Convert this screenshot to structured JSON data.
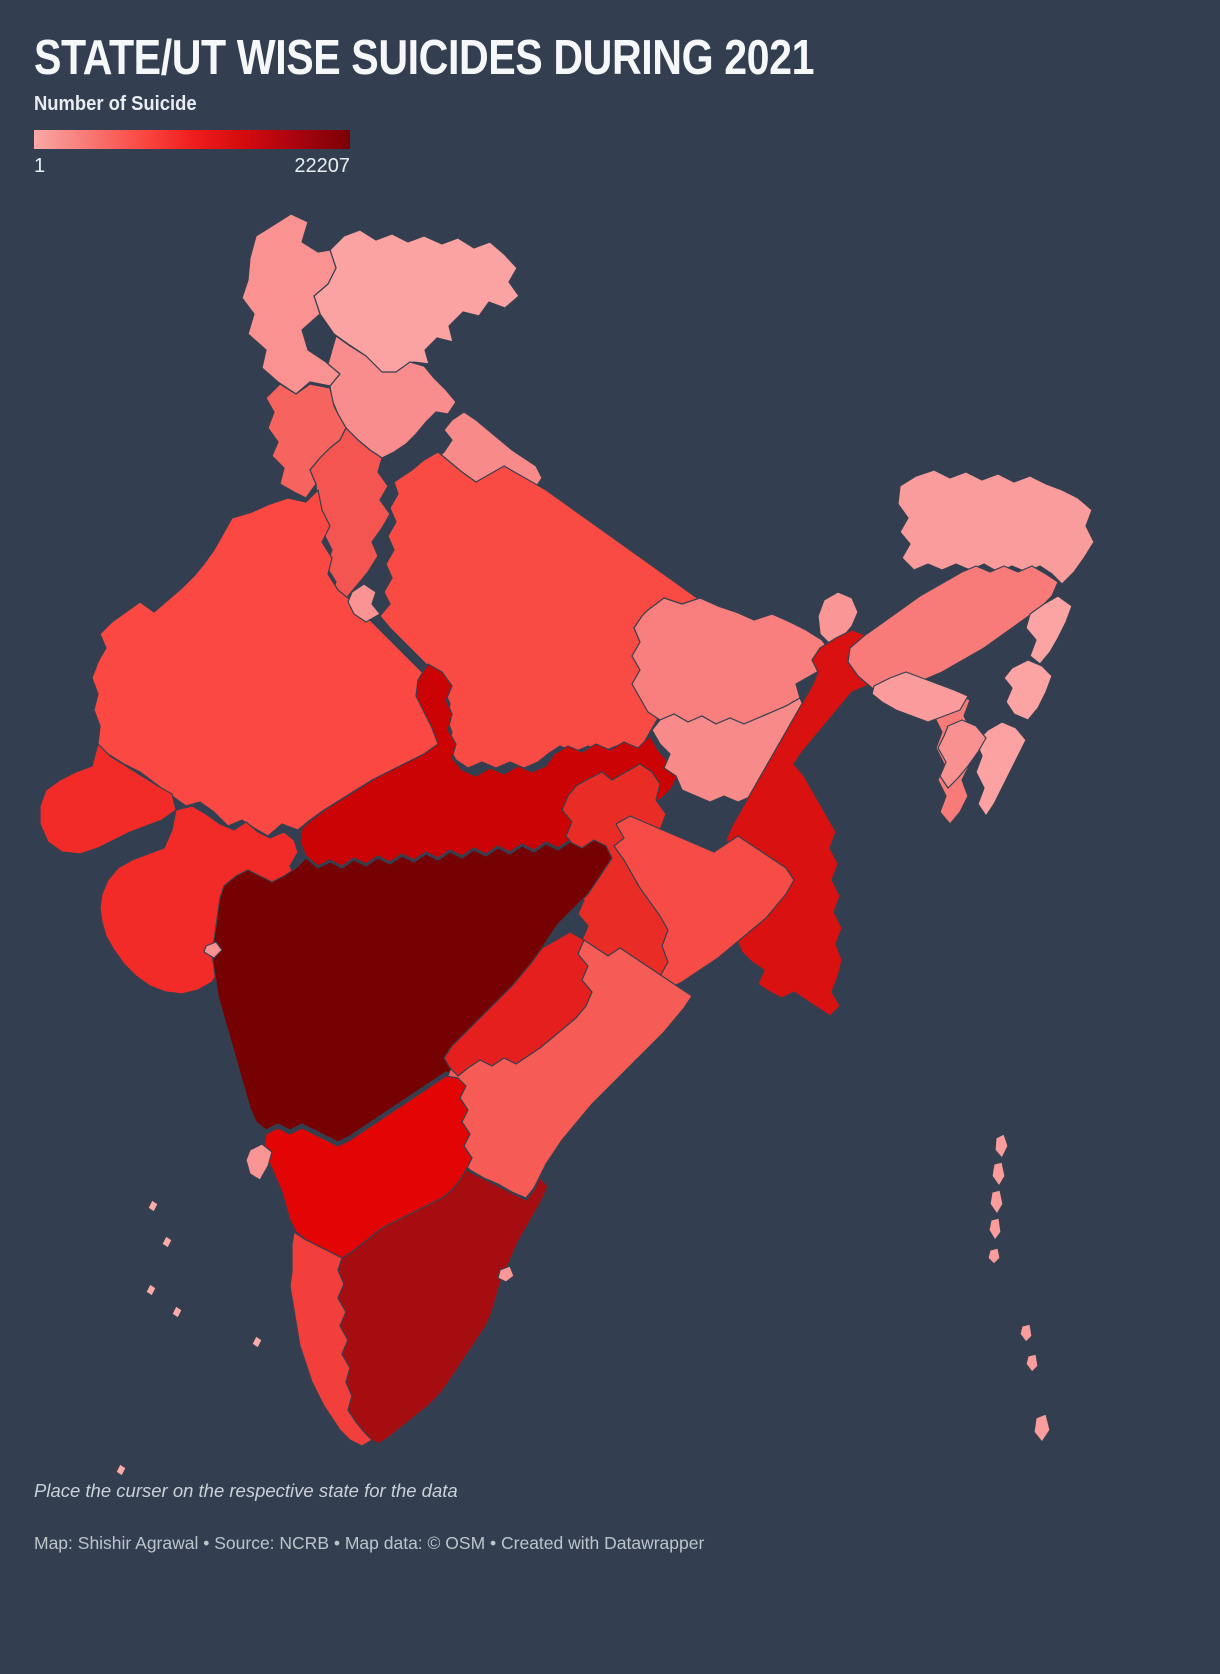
{
  "title": "STATE/UT WISE SUICIDES DURING 2021",
  "legend": {
    "label": "Number of Suicide",
    "min": "1",
    "max": "22207",
    "gradient": [
      "#F9A8A6",
      "#F87A76",
      "#FA4B45",
      "#F01E1E",
      "#D40A0D",
      "#A80410",
      "#7A0103"
    ]
  },
  "footer": {
    "note": "Place the curser on the respective state for the data",
    "credits": "Map: Shishir Agrawal • Source: NCRB • Map data: © OSM • Created with Datawrapper"
  },
  "colors": {
    "background": "#333E50",
    "border": "#35404F",
    "title_text": "#F5F7F9",
    "legend_text": "#E9EDF1",
    "note_text": "#CBD1D8",
    "credits_text": "#BDC4CC"
  },
  "map": {
    "name": "India choropleth — suicides by state/UT, 2021",
    "regions": [
      {
        "id": "ladakh",
        "name": "Ladakh",
        "color": "#FBA2A2"
      },
      {
        "id": "jammu_kashmir",
        "name": "Jammu and Kashmir",
        "color": "#FA9292"
      },
      {
        "id": "himachal_pradesh",
        "name": "Himachal Pradesh",
        "color": "#F98C8C"
      },
      {
        "id": "punjab",
        "name": "Punjab",
        "color": "#F7635E"
      },
      {
        "id": "uttarakhand",
        "name": "Uttarakhand",
        "color": "#F98A8A"
      },
      {
        "id": "haryana",
        "name": "Haryana",
        "color": "#F55550"
      },
      {
        "id": "rajasthan",
        "name": "Rajasthan",
        "color": "#FB4843"
      },
      {
        "id": "uttar_pradesh",
        "name": "Uttar Pradesh",
        "color": "#FA4A44"
      },
      {
        "id": "bihar",
        "name": "Bihar",
        "color": "#F97E7E"
      },
      {
        "id": "sikkim",
        "name": "Sikkim",
        "color": "#FA9696"
      },
      {
        "id": "madhya_pradesh",
        "name": "Madhya Pradesh",
        "color": "#CB0304"
      },
      {
        "id": "gujarat",
        "name": "Gujarat",
        "color": "#F32B28"
      },
      {
        "id": "jharkhand",
        "name": "Jharkhand",
        "color": "#F98A8A"
      },
      {
        "id": "west_bengal",
        "name": "West Bengal",
        "color": "#D91111"
      },
      {
        "id": "chhattisgarh",
        "name": "Chhattisgarh",
        "color": "#E92C26"
      },
      {
        "id": "odisha",
        "name": "Odisha",
        "color": "#F74B46"
      },
      {
        "id": "arunachal_pradesh",
        "name": "Arunachal Pradesh",
        "color": "#FB9C9C"
      },
      {
        "id": "assam",
        "name": "Assam",
        "color": "#F87B79"
      },
      {
        "id": "meghalaya",
        "name": "Meghalaya",
        "color": "#FB9B9B"
      },
      {
        "id": "nagaland",
        "name": "Nagaland",
        "color": "#FCA4A4"
      },
      {
        "id": "manipur",
        "name": "Manipur",
        "color": "#FCA3A3"
      },
      {
        "id": "mizoram",
        "name": "Mizoram",
        "color": "#FCA2A2"
      },
      {
        "id": "tripura",
        "name": "Tripura",
        "color": "#FA9191"
      },
      {
        "id": "maharashtra",
        "name": "Maharashtra",
        "color": "#760103"
      },
      {
        "id": "andhra_pradesh",
        "name": "Andhra Pradesh",
        "color": "#F75B55"
      },
      {
        "id": "telangana",
        "name": "Telangana",
        "color": "#E41F1D"
      },
      {
        "id": "karnataka",
        "name": "Karnataka",
        "color": "#E30506"
      },
      {
        "id": "goa",
        "name": "Goa",
        "color": "#FA9595"
      },
      {
        "id": "daman_diu",
        "name": "Daman and Diu",
        "color": "#FA9090"
      },
      {
        "id": "kerala",
        "name": "Kerala",
        "color": "#F23F3B"
      },
      {
        "id": "tamil_nadu",
        "name": "Tamil Nadu",
        "color": "#A60D11"
      },
      {
        "id": "delhi",
        "name": "Delhi",
        "color": "#FA9494"
      },
      {
        "id": "puducherry",
        "name": "Puducherry",
        "color": "#FA9898"
      },
      {
        "id": "andaman_nicobar",
        "name": "Andaman and Nicobar Islands",
        "color": "#FB9D9D"
      },
      {
        "id": "lakshadweep",
        "name": "Lakshadweep",
        "color": "#FCABAB"
      }
    ]
  }
}
